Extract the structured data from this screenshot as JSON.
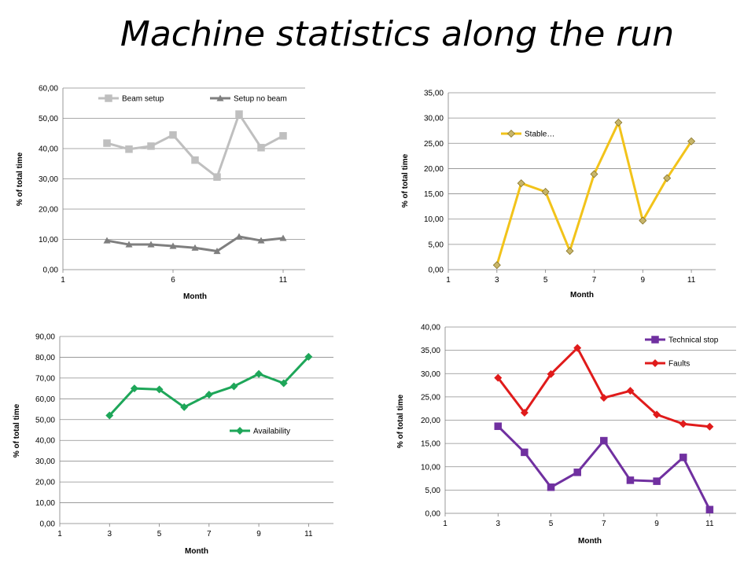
{
  "page": {
    "title": "Machine statistics along the run"
  },
  "chart_data": [
    {
      "type": "line",
      "xlabel": "Month",
      "ylabel": "% of total time",
      "xlim": [
        1,
        12
      ],
      "xticks": [
        1,
        6,
        11
      ],
      "ylim": [
        0,
        60
      ],
      "yticks": [
        "0,00",
        "10,00",
        "20,00",
        "30,00",
        "40,00",
        "50,00",
        "60,00"
      ],
      "grid": true,
      "legend": "top",
      "series": [
        {
          "name": "Beam setup",
          "color": "#bfbfbf",
          "marker": "square",
          "x": [
            3,
            4,
            5,
            6,
            7,
            8,
            9,
            10,
            11
          ],
          "values": [
            41.8,
            39.8,
            40.8,
            44.5,
            36.2,
            30.6,
            51.4,
            40.3,
            44.2
          ]
        },
        {
          "name": "Setup no beam",
          "color": "#7f7f7f",
          "marker": "triangle",
          "x": [
            3,
            4,
            5,
            6,
            7,
            8,
            9,
            10,
            11
          ],
          "values": [
            9.6,
            8.3,
            8.3,
            7.8,
            7.2,
            6.1,
            10.9,
            9.6,
            10.4
          ]
        }
      ]
    },
    {
      "type": "line",
      "xlabel": "Month",
      "ylabel": "% of total time",
      "xlim": [
        1,
        12
      ],
      "xticks": [
        1,
        3,
        5,
        7,
        9,
        11
      ],
      "ylim": [
        0,
        35
      ],
      "yticks": [
        "0,00",
        "5,00",
        "10,00",
        "15,00",
        "20,00",
        "25,00",
        "30,00",
        "35,00"
      ],
      "grid": true,
      "legend": "top-left",
      "series": [
        {
          "name": "Stable…",
          "color": "#f2c31a",
          "marker": "diamond",
          "marker_fill": "#c7b56a",
          "x": [
            3,
            4,
            5,
            6,
            7,
            8,
            9,
            10,
            11
          ],
          "values": [
            0.9,
            17.1,
            15.4,
            3.7,
            18.9,
            29.1,
            9.7,
            18.1,
            25.4
          ]
        }
      ]
    },
    {
      "type": "line",
      "xlabel": "Month",
      "ylabel": "% of total time",
      "xlim": [
        1,
        12
      ],
      "xticks": [
        1,
        3,
        5,
        7,
        9,
        11
      ],
      "ylim": [
        0,
        90
      ],
      "yticks": [
        "0,00",
        "10,00",
        "20,00",
        "30,00",
        "40,00",
        "50,00",
        "60,00",
        "70,00",
        "80,00",
        "90,00"
      ],
      "grid": true,
      "legend": "right",
      "series": [
        {
          "name": "Availability",
          "color": "#1ea659",
          "marker": "diamond",
          "x": [
            3,
            4,
            5,
            6,
            7,
            8,
            9,
            10,
            11
          ],
          "values": [
            52.0,
            65.0,
            64.5,
            56.0,
            62.0,
            66.0,
            72.0,
            67.5,
            80.2
          ]
        }
      ]
    },
    {
      "type": "line",
      "xlabel": "Month",
      "ylabel": "% of total time",
      "xlim": [
        1,
        12
      ],
      "xticks": [
        1,
        3,
        5,
        7,
        9,
        11
      ],
      "ylim": [
        0,
        40
      ],
      "yticks": [
        "0,00",
        "5,00",
        "10,00",
        "15,00",
        "20,00",
        "25,00",
        "30,00",
        "35,00",
        "40,00"
      ],
      "grid": true,
      "legend": "top-right",
      "series": [
        {
          "name": "Technical stop",
          "color": "#7030a0",
          "marker": "square",
          "x": [
            3,
            4,
            5,
            6,
            7,
            8,
            9,
            10,
            11
          ],
          "values": [
            18.7,
            13.1,
            5.6,
            8.8,
            15.6,
            7.1,
            6.9,
            12.0,
            0.8
          ]
        },
        {
          "name": "Faults",
          "color": "#e01b1b",
          "marker": "diamond",
          "x": [
            3,
            4,
            5,
            6,
            7,
            8,
            9,
            10,
            11
          ],
          "values": [
            29.1,
            21.6,
            29.9,
            35.5,
            24.8,
            26.3,
            21.2,
            19.2,
            18.6
          ]
        }
      ]
    }
  ]
}
